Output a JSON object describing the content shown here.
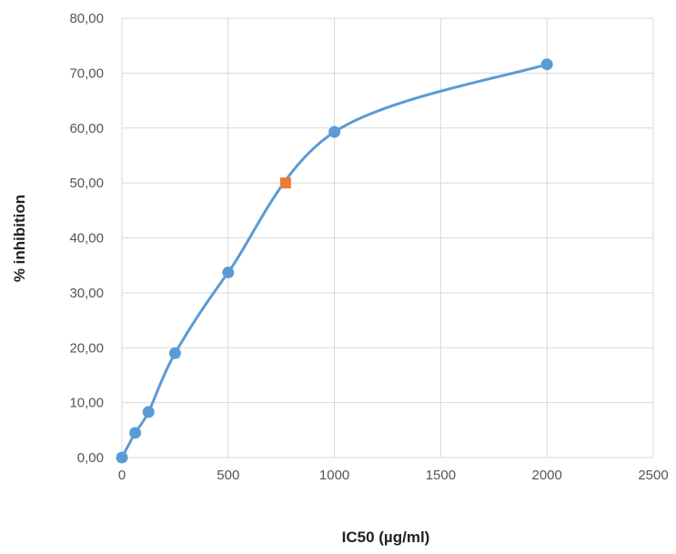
{
  "chart_data": {
    "type": "scatter",
    "xlabel": "IC50 (µg/ml)",
    "ylabel": "% inhibition",
    "xlim": [
      0,
      2500
    ],
    "ylim": [
      0,
      80
    ],
    "x_ticks": [
      0,
      500,
      1000,
      1500,
      2000,
      2500
    ],
    "x_tick_labels": [
      "0",
      "500",
      "1000",
      "1500",
      "2000",
      "2500"
    ],
    "y_ticks": [
      0,
      10,
      20,
      30,
      40,
      50,
      60,
      70,
      80
    ],
    "y_tick_labels": [
      "0,00",
      "10,00",
      "20,00",
      "30,00",
      "40,00",
      "50,00",
      "60,00",
      "70,00",
      "80,00"
    ],
    "grid": true,
    "legend": "none",
    "smooth_line": true,
    "series": [
      {
        "marker": "circle",
        "color": "#5b9bd5",
        "x": [
          0,
          62.5,
          125,
          250,
          500,
          1000,
          2000
        ],
        "y": [
          0.0,
          4.5,
          8.3,
          19.0,
          33.7,
          59.3,
          71.6
        ]
      },
      {
        "marker": "square",
        "color": "#ed7d31",
        "x": [
          770
        ],
        "y": [
          50.0
        ]
      }
    ]
  }
}
